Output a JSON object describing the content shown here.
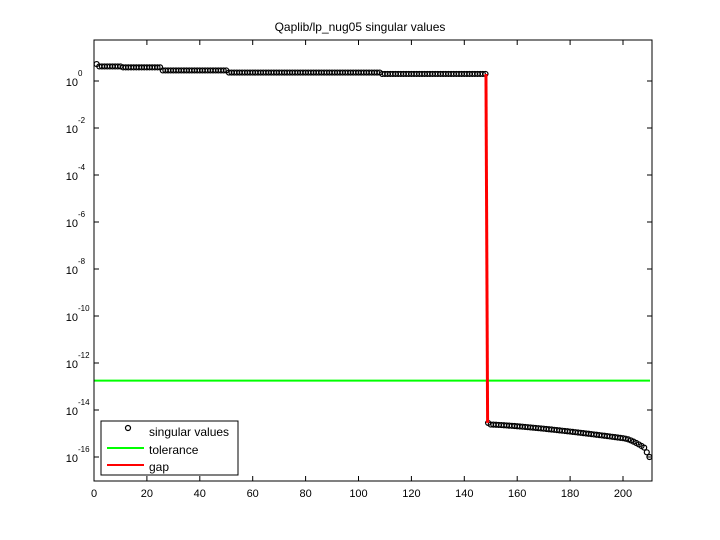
{
  "chart_data": {
    "type": "scatter",
    "title": "Qaplib/lp_nug05 singular values",
    "xlabel": "",
    "ylabel": "",
    "yscale": "log",
    "xlim": [
      0,
      211
    ],
    "ylim_log10": [
      -17,
      0.8
    ],
    "x_ticks": [
      0,
      20,
      40,
      60,
      80,
      100,
      120,
      140,
      160,
      180,
      200
    ],
    "y_ticks_log10": [
      0,
      -2,
      -4,
      -6,
      -8,
      -10,
      -12,
      -14,
      -16
    ],
    "y_tick_labels": [
      "10^0",
      "10^-2",
      "10^-4",
      "10^-6",
      "10^-8",
      "10^-10",
      "10^-12",
      "10^-14",
      "10^-16"
    ],
    "grid": false,
    "legend_position": "lower left",
    "series": [
      {
        "name": "singular values",
        "style": "black open circles",
        "segments_log10": [
          {
            "x_start": 1,
            "x_end": 1,
            "log10": 0.72
          },
          {
            "x_start": 2,
            "x_end": 10,
            "log10": 0.62
          },
          {
            "x_start": 11,
            "x_end": 25,
            "log10": 0.58
          },
          {
            "x_start": 26,
            "x_end": 50,
            "log10": 0.45
          },
          {
            "x_start": 51,
            "x_end": 108,
            "log10": 0.36
          },
          {
            "x_start": 109,
            "x_end": 148,
            "log10": 0.3
          },
          {
            "x_start": 149,
            "x_end": 149,
            "log10": -14.55
          },
          {
            "x_start": 150,
            "x_end": 200,
            "log10_from": -14.62,
            "log10_to": -15.2
          },
          {
            "x_start": 201,
            "x_end": 208,
            "log10_from": -15.22,
            "log10_to": -15.6
          },
          {
            "x_start": 209,
            "x_end": 210,
            "log10_from": -15.8,
            "log10_to": -16.0
          }
        ]
      },
      {
        "name": "tolerance",
        "color": "#00ff00",
        "style": "line",
        "log10": -12.75
      },
      {
        "name": "gap",
        "color": "#ff0000",
        "style": "line",
        "x": [
          148,
          149
        ],
        "log10": [
          0.3,
          -14.55
        ]
      }
    ]
  }
}
